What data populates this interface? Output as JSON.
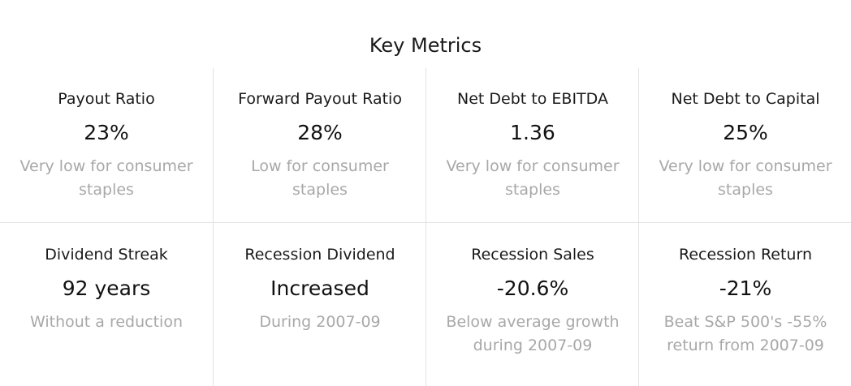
{
  "page": {
    "title": "Key Metrics"
  },
  "metrics": [
    {
      "label": "Payout Ratio",
      "value": "23%",
      "note": "Very low for consumer staples"
    },
    {
      "label": "Forward Payout Ratio",
      "value": "28%",
      "note": "Low for consumer staples"
    },
    {
      "label": "Net Debt to EBITDA",
      "value": "1.36",
      "note": "Very low for consumer staples"
    },
    {
      "label": "Net Debt to Capital",
      "value": "25%",
      "note": "Very low for consumer staples"
    },
    {
      "label": "Dividend Streak",
      "value": "92 years",
      "note": "Without a reduction"
    },
    {
      "label": "Recession Dividend",
      "value": "Increased",
      "note": "During 2007-09"
    },
    {
      "label": "Recession Sales",
      "value": "-20.6%",
      "note": "Below average growth during 2007-09"
    },
    {
      "label": "Recession Return",
      "value": "-21%",
      "note": "Beat S&P 500's -55% return from 2007-09"
    }
  ]
}
